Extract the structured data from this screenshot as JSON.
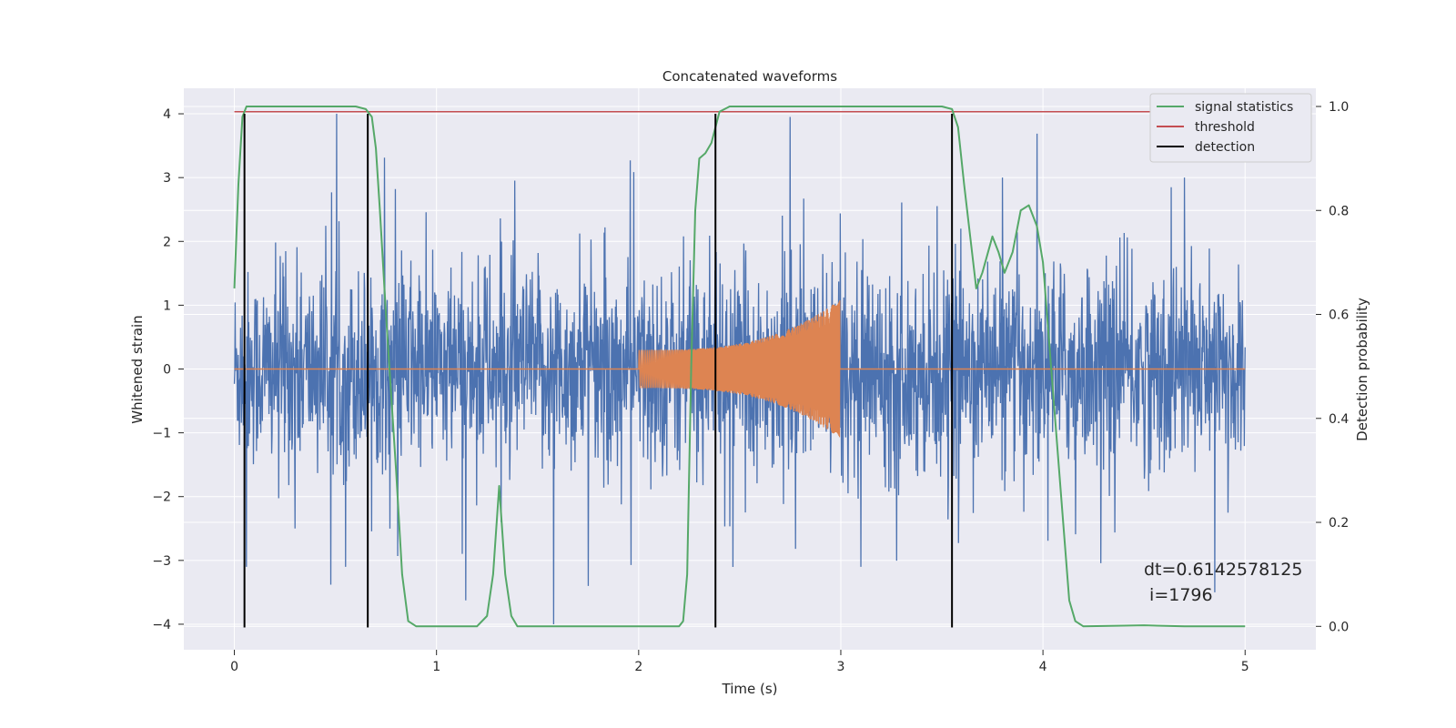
{
  "chart_data": {
    "type": "line",
    "title": "Concatenated waveforms",
    "xlabel": "Time (s)",
    "ylabel": "Whitened strain",
    "y2label": "Detection probability",
    "xlim": [
      -0.25,
      5.35
    ],
    "ylim": [
      -4.4,
      4.4
    ],
    "y2lim": [
      -0.045,
      1.035
    ],
    "x_ticks": [
      0,
      1,
      2,
      3,
      4,
      5
    ],
    "y_ticks": [
      -4,
      -3,
      -2,
      -1,
      0,
      1,
      2,
      3,
      4
    ],
    "y2_ticks": [
      0.0,
      0.2,
      0.4,
      0.6,
      0.8,
      1.0
    ],
    "grid": true,
    "legend_position": "top-right",
    "colors": {
      "strain": "#4c72b0",
      "template": "#dd8452",
      "signal_statistics": "#55a868",
      "threshold": "#c44e52",
      "detection": "#000000",
      "background": "#eaeaf2"
    },
    "series": [
      {
        "name": "signal statistics",
        "axis": "right",
        "x": [
          0,
          0.02,
          0.04,
          0.06,
          0.08,
          0.1,
          0.3,
          0.5,
          0.6,
          0.65,
          0.68,
          0.7,
          0.72,
          0.75,
          0.8,
          0.83,
          0.86,
          0.9,
          1.0,
          1.2,
          1.25,
          1.28,
          1.31,
          1.34,
          1.37,
          1.4,
          1.5,
          2.0,
          2.2,
          2.22,
          2.24,
          2.26,
          2.28,
          2.3,
          2.33,
          2.36,
          2.4,
          2.45,
          2.5,
          3.0,
          3.5,
          3.55,
          3.58,
          3.61,
          3.64,
          3.67,
          3.7,
          3.75,
          3.78,
          3.81,
          3.85,
          3.89,
          3.93,
          3.97,
          4.0,
          4.03,
          4.06,
          4.1,
          4.13,
          4.16,
          4.2,
          4.5,
          4.7,
          5.0
        ],
        "y": [
          0.65,
          0.85,
          0.98,
          1.0,
          1.0,
          1.0,
          1.0,
          1.0,
          1.0,
          0.995,
          0.98,
          0.92,
          0.8,
          0.6,
          0.3,
          0.1,
          0.01,
          0.0,
          0.0,
          0.0,
          0.02,
          0.1,
          0.27,
          0.1,
          0.02,
          0.0,
          0.0,
          0.0,
          0.0,
          0.01,
          0.1,
          0.5,
          0.8,
          0.9,
          0.91,
          0.93,
          0.99,
          1.0,
          1.0,
          1.0,
          1.0,
          0.995,
          0.96,
          0.85,
          0.75,
          0.65,
          0.68,
          0.75,
          0.72,
          0.68,
          0.72,
          0.8,
          0.81,
          0.77,
          0.7,
          0.55,
          0.4,
          0.2,
          0.05,
          0.01,
          0.0,
          0.002,
          0.0,
          0.0
        ]
      },
      {
        "name": "threshold",
        "axis": "right",
        "x": [
          0,
          5
        ],
        "y": [
          0.99,
          0.99
        ]
      },
      {
        "name": "detection",
        "axis": "left",
        "vlines": [
          0.05,
          0.66,
          2.38,
          3.55
        ],
        "ymin": -4.05,
        "ymax": 4.0
      },
      {
        "axis": "left",
        "kind": "noise",
        "x_range": [
          0,
          5
        ],
        "typical_abs": [
          -0.85,
          0.75
        ],
        "min": -4.0,
        "max": 4.0,
        "spikes": [
          [
            0.06,
            -3.1
          ],
          [
            0.3,
            -2.5
          ],
          [
            0.55,
            -3.1
          ],
          [
            1.32,
            -2.4
          ],
          [
            1.58,
            -4.0
          ],
          [
            1.75,
            -3.4
          ],
          [
            2.75,
            3.95
          ],
          [
            3.1,
            -3.1
          ],
          [
            3.8,
            3.0
          ],
          [
            4.7,
            -3.2
          ],
          [
            4.85,
            -3.5
          ],
          [
            4.7,
            3.0
          ]
        ]
      },
      {
        "axis": "left",
        "kind": "chirp",
        "x_range": [
          2.0,
          3.0
        ],
        "amplitude_start": 0.3,
        "amplitude_end": 1.1
      }
    ],
    "legend": [
      "signal statistics",
      "threshold",
      "detection"
    ],
    "annotation": {
      "line1": "dt=0.6142578125",
      "line2": " i=1796"
    }
  }
}
